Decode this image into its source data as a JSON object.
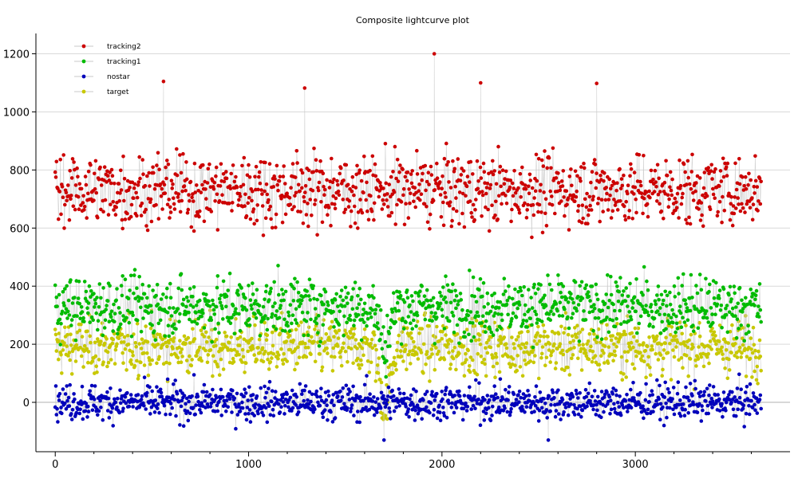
{
  "chart_data": {
    "type": "scatter",
    "title": "Composite lightcurve plot",
    "xlabel": "",
    "ylabel": "",
    "xlim": [
      -100,
      3800
    ],
    "ylim": [
      -170,
      1270
    ],
    "x_ticks": [
      0,
      1000,
      2000,
      3000
    ],
    "y_ticks": [
      0,
      200,
      400,
      600,
      800,
      1000,
      1200
    ],
    "grid": "horizontal",
    "legend_position": "top-left",
    "connecting_line_color": "#c8c8c8",
    "series": [
      {
        "name": "tracking2",
        "color": "#cc0000",
        "x_range": [
          0,
          3650
        ],
        "typical_range": [
          560,
          900
        ],
        "approx_mean": 730,
        "notable_points": [
          [
            1960,
            1200
          ],
          [
            560,
            1105
          ],
          [
            2200,
            1100
          ],
          [
            2800,
            1098
          ],
          [
            1290,
            1082
          ]
        ]
      },
      {
        "name": "tracking1",
        "color": "#00bb00",
        "x_range": [
          0,
          3650
        ],
        "typical_range": [
          220,
          500
        ],
        "approx_mean": 330,
        "dip": {
          "x_range": [
            1650,
            1760
          ],
          "min_value": 150
        }
      },
      {
        "name": "nostar",
        "color": "#0000bb",
        "x_range": [
          0,
          3650
        ],
        "typical_range": [
          -90,
          80
        ],
        "approx_mean": 0,
        "notable_points": [
          [
            1700,
            -130
          ],
          [
            2550,
            -130
          ]
        ]
      },
      {
        "name": "target",
        "color": "#c8c800",
        "x_range": [
          0,
          3650
        ],
        "typical_range": [
          70,
          330
        ],
        "approx_mean": 190,
        "dip": {
          "x_range": [
            1650,
            1760
          ],
          "min_value": -80
        }
      }
    ]
  }
}
